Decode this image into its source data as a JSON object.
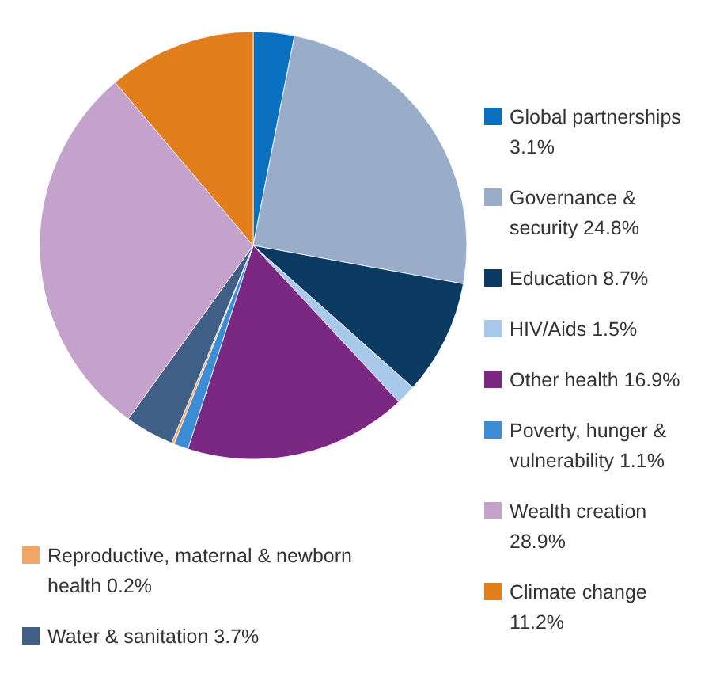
{
  "chart_data": {
    "type": "pie",
    "categories": [
      "Global partnerships",
      "Governance & security",
      "Education",
      "HIV/Aids",
      "Other health",
      "Poverty, hunger & vulnerability",
      "Reproductive, maternal & newborn health",
      "Water & sanitation",
      "Wealth creation",
      "Climate change"
    ],
    "values": [
      3.1,
      24.8,
      8.7,
      1.5,
      16.9,
      1.1,
      0.2,
      3.7,
      28.9,
      11.2
    ],
    "value_labels": [
      "3.1%",
      "24.8%",
      "8.7%",
      "1.5%",
      "16.9%",
      "1.1%",
      "0.2%",
      "3.7%",
      "28.9%",
      "11.2%"
    ],
    "colors": [
      "#0b6fc0",
      "#9aadc8",
      "#0b3a63",
      "#a9c9ea",
      "#7a2882",
      "#3d8dd6",
      "#f1a765",
      "#3f5f86",
      "#c4a2cc",
      "#e37e1c"
    ],
    "legend": "right"
  }
}
